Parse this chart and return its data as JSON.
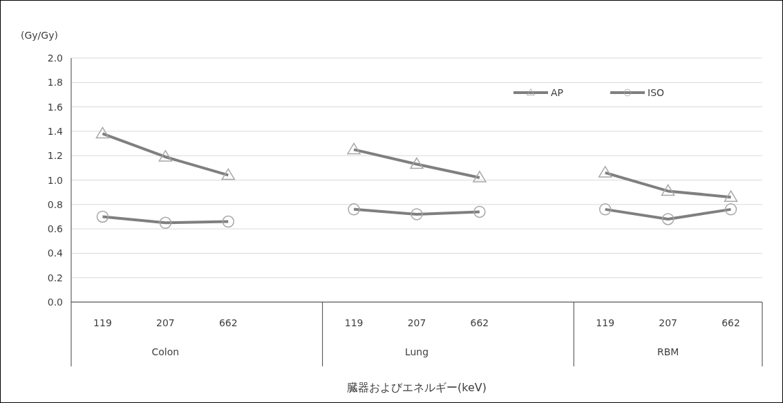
{
  "chart_data": {
    "type": "line",
    "ylabel": "(Gy/Gy)",
    "xlabel": "臓器およびエネルギー(keV)",
    "categories": [
      "119",
      "207",
      "662",
      null,
      "119",
      "207",
      "662",
      null,
      "119",
      "207",
      "662"
    ],
    "annotations": [
      "Colon",
      "Lung",
      "RBM"
    ],
    "series": [
      {
        "name": "AP",
        "color": "#7f7f7f",
        "marker": "triangle",
        "values": [
          1.38,
          1.19,
          1.04,
          null,
          1.25,
          1.13,
          1.02,
          null,
          1.06,
          0.91,
          0.86
        ]
      },
      {
        "name": "ISO",
        "color": "#7f7f7f",
        "marker": "circle",
        "values": [
          0.7,
          0.65,
          0.66,
          null,
          0.76,
          0.72,
          0.74,
          null,
          0.76,
          0.68,
          0.76
        ]
      }
    ],
    "ylim": [
      0,
      2
    ],
    "yticks": [
      {
        "value": 0,
        "label": "0.0"
      },
      {
        "value": 0.2,
        "label": "0.2"
      },
      {
        "value": 0.4,
        "label": "0.4"
      },
      {
        "value": 0.6,
        "label": "0.6"
      },
      {
        "value": 0.8,
        "label": "0.8"
      },
      {
        "value": 1,
        "label": "1.0"
      },
      {
        "value": 1.2,
        "label": "1.2"
      },
      {
        "value": 1.4,
        "label": "1.4"
      },
      {
        "value": 1.6,
        "label": "1.6"
      },
      {
        "value": 1.8,
        "label": "1.8"
      },
      {
        "value": 2,
        "label": "2.0"
      }
    ],
    "grid": "y",
    "legend": "top right"
  }
}
